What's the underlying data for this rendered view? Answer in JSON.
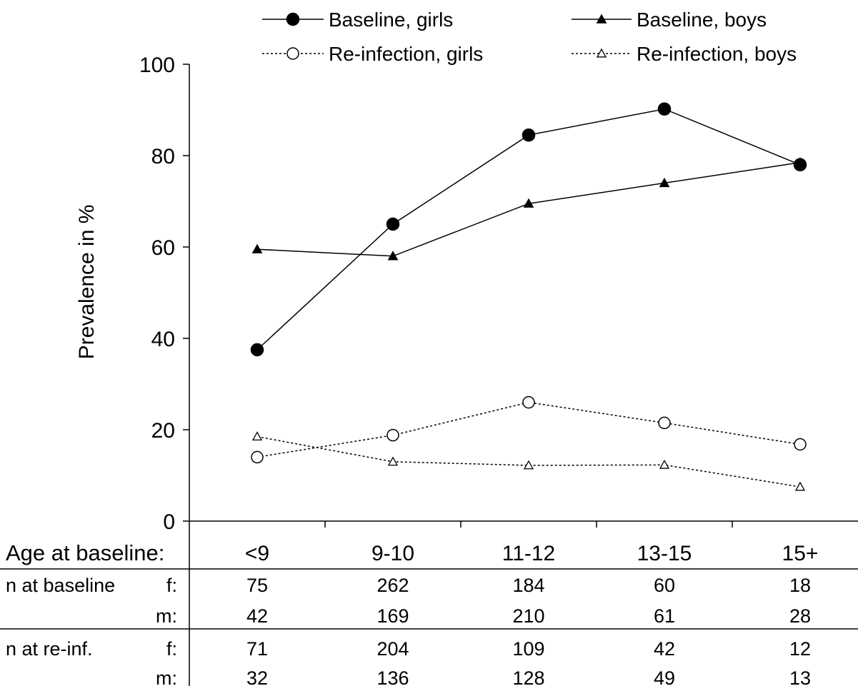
{
  "chart_data": {
    "type": "line",
    "categories": [
      "<9",
      "9-10",
      "11-12",
      "13-15",
      "15+"
    ],
    "ylabel": "Prevalence in %",
    "ylim": [
      0,
      100
    ],
    "yticks": [
      0,
      20,
      40,
      60,
      80,
      100
    ],
    "grid": false,
    "legend_position": "top",
    "series": [
      {
        "name": "Baseline, girls",
        "marker": "filled-circle",
        "line": "solid",
        "values": [
          37.5,
          65,
          84.5,
          90.2,
          78
        ]
      },
      {
        "name": "Baseline, boys",
        "marker": "filled-triangle",
        "line": "solid",
        "values": [
          59.5,
          58,
          69.5,
          74,
          78.5
        ]
      },
      {
        "name": "Re-infection, girls",
        "marker": "open-circle",
        "line": "dotted",
        "values": [
          14,
          18.8,
          26,
          21.5,
          16.8
        ]
      },
      {
        "name": "Re-infection, boys",
        "marker": "open-triangle",
        "line": "dotted",
        "values": [
          18.5,
          13,
          12.2,
          12.3,
          7.5
        ]
      }
    ]
  },
  "table": {
    "header_label": "Age at baseline:",
    "groups": [
      {
        "label": "n at baseline",
        "rows": [
          {
            "sex": "f:",
            "values": [
              "75",
              "262",
              "184",
              "60",
              "18"
            ]
          },
          {
            "sex": "m:",
            "values": [
              "42",
              "169",
              "210",
              "61",
              "28"
            ]
          }
        ]
      },
      {
        "label": "n at re-inf.",
        "rows": [
          {
            "sex": "f:",
            "values": [
              "71",
              "204",
              "109",
              "42",
              "12"
            ]
          },
          {
            "sex": "m:",
            "values": [
              "32",
              "136",
              "128",
              "49",
              "13"
            ]
          }
        ]
      }
    ]
  }
}
